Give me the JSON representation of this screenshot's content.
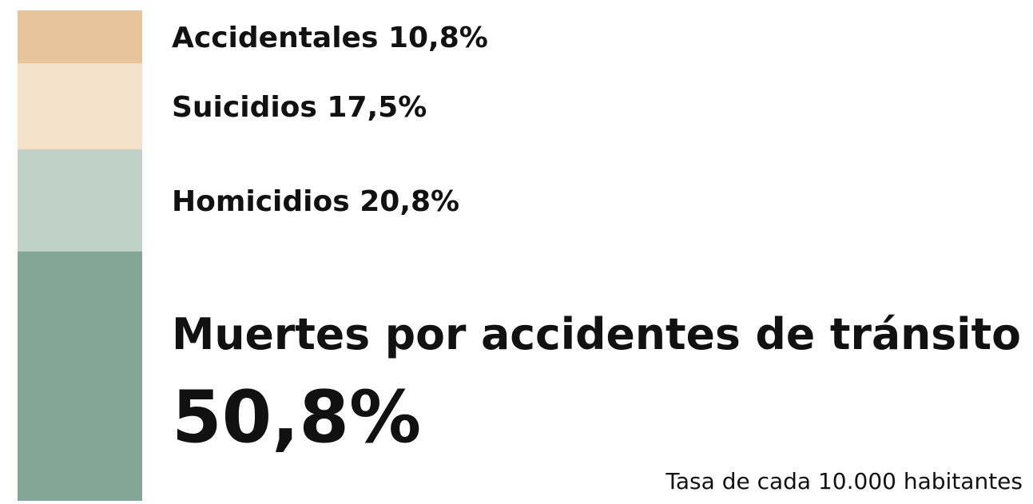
{
  "chart_data": {
    "type": "stacked-bar",
    "series": [
      {
        "name": "Accidentales",
        "color": "#e7c49b",
        "values": [
          10.8
        ],
        "value_labels": [
          "10,8%"
        ]
      },
      {
        "name": "Suicidios",
        "color": "#f3e2c9",
        "values": [
          17.5
        ],
        "value_labels": [
          "17,5%"
        ]
      },
      {
        "name": "Homicidios",
        "color": "#bfd1c8",
        "values": [
          20.8
        ],
        "value_labels": [
          "20,8%"
        ]
      },
      {
        "name": "Muertes por accidentes de tránsito",
        "color": "#84a698",
        "values": [
          50.8
        ],
        "value_labels": [
          "50,8%"
        ]
      }
    ],
    "note": "Tasa de cada 10.000 habitantes"
  }
}
